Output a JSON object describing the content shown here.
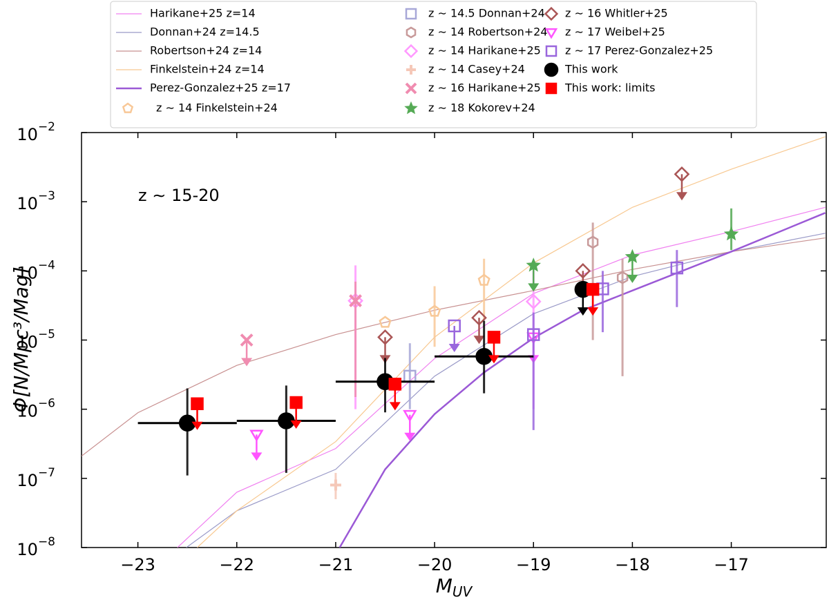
{
  "chart_data": {
    "type": "scatter",
    "annotation": "z ∼ 15-20",
    "xlabel": {
      "main": "M",
      "sub": "UV"
    },
    "ylabel": "Φ[N/Mpc³/Mag]",
    "xlim": [
      -23.57,
      -16.04
    ],
    "ylim": [
      1e-08,
      0.01
    ],
    "log_y": true,
    "xticks": [
      {
        "value": -23,
        "label": "−23"
      },
      {
        "value": -22,
        "label": "−22"
      },
      {
        "value": -21,
        "label": "−21"
      },
      {
        "value": -20,
        "label": "−20"
      },
      {
        "value": -19,
        "label": "−19"
      },
      {
        "value": -18,
        "label": "−18"
      },
      {
        "value": -17,
        "label": "−17"
      }
    ],
    "yticks": [
      {
        "value": 1e-08,
        "label": "10",
        "exponent": "−8"
      },
      {
        "value": 1e-07,
        "label": "10",
        "exponent": "−7"
      },
      {
        "value": 1e-06,
        "label": "10",
        "exponent": "−6"
      },
      {
        "value": 1e-05,
        "label": "10",
        "exponent": "−5"
      },
      {
        "value": 0.0001,
        "label": "10",
        "exponent": "−4"
      },
      {
        "value": 0.001,
        "label": "10",
        "exponent": "−3"
      },
      {
        "value": 0.01,
        "label": "10",
        "exponent": "−2"
      }
    ],
    "lines": [
      {
        "name": "Harikane+25 z=14",
        "color": "#f080f0",
        "width": 1.2,
        "x": [
          -22.6,
          -22,
          -21,
          -20,
          -19,
          -18,
          -17,
          -16.05
        ],
        "values": [
          1e-08,
          6.3e-08,
          2.7e-07,
          5.4e-06,
          4.7e-05,
          0.00017,
          0.00037,
          0.00083
        ]
      },
      {
        "name": "Donnan+24 z=14.5",
        "color": "#9a9ac8",
        "width": 1.2,
        "x": [
          -22.51,
          -22,
          -21,
          -20,
          -19,
          -18,
          -17,
          -16.05
        ],
        "values": [
          1e-08,
          3.4e-08,
          1.35e-07,
          3e-06,
          2.4e-05,
          8.3e-05,
          0.00019,
          0.00035
        ]
      },
      {
        "name": "Robertson+24 z=14",
        "color": "#c89090",
        "width": 1.2,
        "x": [
          -23.57,
          -23,
          -22,
          -21,
          -20,
          -19,
          -18,
          -17,
          -16.05
        ],
        "values": [
          2.1e-07,
          8.9e-07,
          4.3e-06,
          1.2e-05,
          2.7e-05,
          5.2e-05,
          0.000105,
          0.00019,
          0.0003
        ]
      },
      {
        "name": "Finkelstein+24 z=14",
        "color": "#f8c890",
        "width": 1.2,
        "x": [
          -22.4,
          -22,
          -21,
          -20,
          -19,
          -18,
          -17,
          -16.05
        ],
        "values": [
          1e-08,
          3.4e-08,
          3.4e-07,
          1.1e-05,
          0.00013,
          0.00083,
          0.00295,
          0.0087
        ]
      },
      {
        "name": "Perez-Gonzalez+25 z=17",
        "color": "#9b59d6",
        "width": 2.5,
        "x": [
          -20.96,
          -20.5,
          -20,
          -19.5,
          -19,
          -18.5,
          -18,
          -17,
          -16.05
        ],
        "values": [
          1e-08,
          1.35e-07,
          8.5e-07,
          3.4e-06,
          1.07e-05,
          2.7e-05,
          5.2e-05,
          0.00019,
          0.00069
        ]
      }
    ],
    "series": [
      {
        "name": "z ∼ 14 Finkelstein+24",
        "color": "#f8c898",
        "marker": "pentagon",
        "filled": false,
        "x": [
          -20.5,
          -20,
          -19.5
        ],
        "values": [
          1.8e-05,
          2.6e-05,
          7.3e-05
        ],
        "err_low": [
          null,
          8e-06,
          2e-05
        ],
        "err_high": [
          null,
          6e-05,
          0.00015
        ],
        "upper_limit": [
          false,
          false,
          false
        ]
      },
      {
        "name": "z ∼ 14.5 Donnan+24",
        "color": "#a8a8d8",
        "marker": "square",
        "filled": false,
        "x": [
          -20.25
        ],
        "values": [
          3e-06
        ],
        "err_low": [
          1e-06
        ],
        "err_high": [
          9e-06
        ],
        "upper_limit": [
          false
        ]
      },
      {
        "name": "z ∼ 14 Robertson+24",
        "color": "#c89a9a",
        "marker": "hexagon",
        "filled": false,
        "x": [
          -18.4,
          -18.1
        ],
        "values": [
          0.00026,
          8e-05
        ],
        "err_low": [
          1e-05,
          3e-06
        ],
        "err_high": [
          0.0005,
          0.00015
        ],
        "upper_limit": [
          false,
          false
        ]
      },
      {
        "name": "z ∼ 14 Harikane+25",
        "color": "#ff99ff",
        "marker": "diamond",
        "filled": false,
        "x": [
          -20.8,
          -19
        ],
        "values": [
          3.7e-05,
          3.6e-05
        ],
        "err_low": [
          1e-06,
          1e-06
        ],
        "err_high": [
          0.00012,
          0.0001
        ],
        "upper_limit": [
          false,
          false
        ]
      },
      {
        "name": "z ∼ 14 Casey+24",
        "color": "#f5c8b8",
        "marker": "plus",
        "filled": false,
        "x": [
          -21
        ],
        "values": [
          8e-08
        ],
        "err_low": [
          5e-08
        ],
        "err_high": [
          1.2e-07
        ],
        "upper_limit": [
          false
        ]
      },
      {
        "name": "z ∼ 16 Harikane+25",
        "color": "#f08cb0",
        "marker": "cross",
        "filled": false,
        "x": [
          -21.9,
          -20.8
        ],
        "values": [
          1e-05,
          3.7e-05
        ],
        "err_low": [
          null,
          1.5e-06
        ],
        "err_high": [
          null,
          7e-05
        ],
        "upper_limit": [
          true,
          false
        ]
      },
      {
        "name": "z ∼ 18 Kokorev+24",
        "color": "#55aa55",
        "marker": "star",
        "filled": true,
        "x": [
          -19,
          -18,
          -17
        ],
        "values": [
          0.00012,
          0.00016,
          0.00034
        ],
        "err_low": [
          null,
          null,
          0.0002
        ],
        "err_high": [
          null,
          null,
          0.0008
        ],
        "upper_limit": [
          true,
          true,
          false
        ]
      },
      {
        "name": "z ∼ 16 Whitler+25",
        "color": "#aa5555",
        "marker": "diamond",
        "filled": false,
        "x": [
          -20.5,
          -19.55,
          -18.5,
          -17.5
        ],
        "values": [
          1.1e-05,
          2.1e-05,
          0.0001,
          0.0025
        ],
        "err_low": [
          null,
          null,
          null,
          null
        ],
        "err_high": [
          null,
          null,
          null,
          null
        ],
        "upper_limit": [
          true,
          true,
          true,
          true
        ]
      },
      {
        "name": "z ∼ 17 Weibel+25",
        "color": "#ff55ff",
        "marker": "triangle",
        "filled": false,
        "x": [
          -21.8,
          -20.25,
          -19
        ],
        "values": [
          4.3e-07,
          8.3e-07,
          1.1e-05
        ],
        "err_low": [
          null,
          null,
          null
        ],
        "err_high": [
          null,
          null,
          null
        ],
        "upper_limit": [
          true,
          true,
          true
        ]
      },
      {
        "name": "z ∼ 17 Perez-Gonzalez+25",
        "color": "#9966dd",
        "marker": "square",
        "filled": false,
        "x": [
          -19.8,
          -19,
          -18.3,
          -17.55
        ],
        "values": [
          1.6e-05,
          1.2e-05,
          5.5e-05,
          0.00011
        ],
        "err_low": [
          null,
          5e-07,
          1.3e-05,
          3e-05
        ],
        "err_high": [
          null,
          2.5e-05,
          0.0001,
          0.0002
        ],
        "upper_limit": [
          true,
          false,
          false,
          false
        ]
      },
      {
        "name": "This work",
        "color": "#000000",
        "marker": "circle",
        "filled": true,
        "x": [
          -22.5,
          -21.5,
          -20.5,
          -19.5,
          -18.5
        ],
        "values": [
          6.3e-07,
          6.8e-07,
          2.5e-06,
          5.8e-06,
          5.4e-05
        ],
        "xerr": [
          0.5,
          0.5,
          0.5,
          0.5,
          null
        ],
        "err_low": [
          1.1e-07,
          1.2e-07,
          9e-07,
          1.7e-06,
          null
        ],
        "err_high": [
          2e-06,
          2.2e-06,
          5.5e-06,
          1.9e-05,
          null
        ],
        "upper_limit": [
          false,
          false,
          false,
          false,
          true
        ]
      },
      {
        "name": "This work: limits",
        "color": "#ff0000",
        "marker": "square",
        "filled": true,
        "x": [
          -22.4,
          -21.4,
          -20.4,
          -19.4,
          -18.4
        ],
        "values": [
          1.2e-06,
          1.25e-06,
          2.3e-06,
          1.1e-05,
          5.4e-05
        ],
        "err_low": [
          null,
          null,
          null,
          null,
          null
        ],
        "err_high": [
          null,
          null,
          null,
          null,
          null
        ],
        "upper_limit": [
          true,
          true,
          true,
          true,
          true
        ]
      }
    ]
  }
}
